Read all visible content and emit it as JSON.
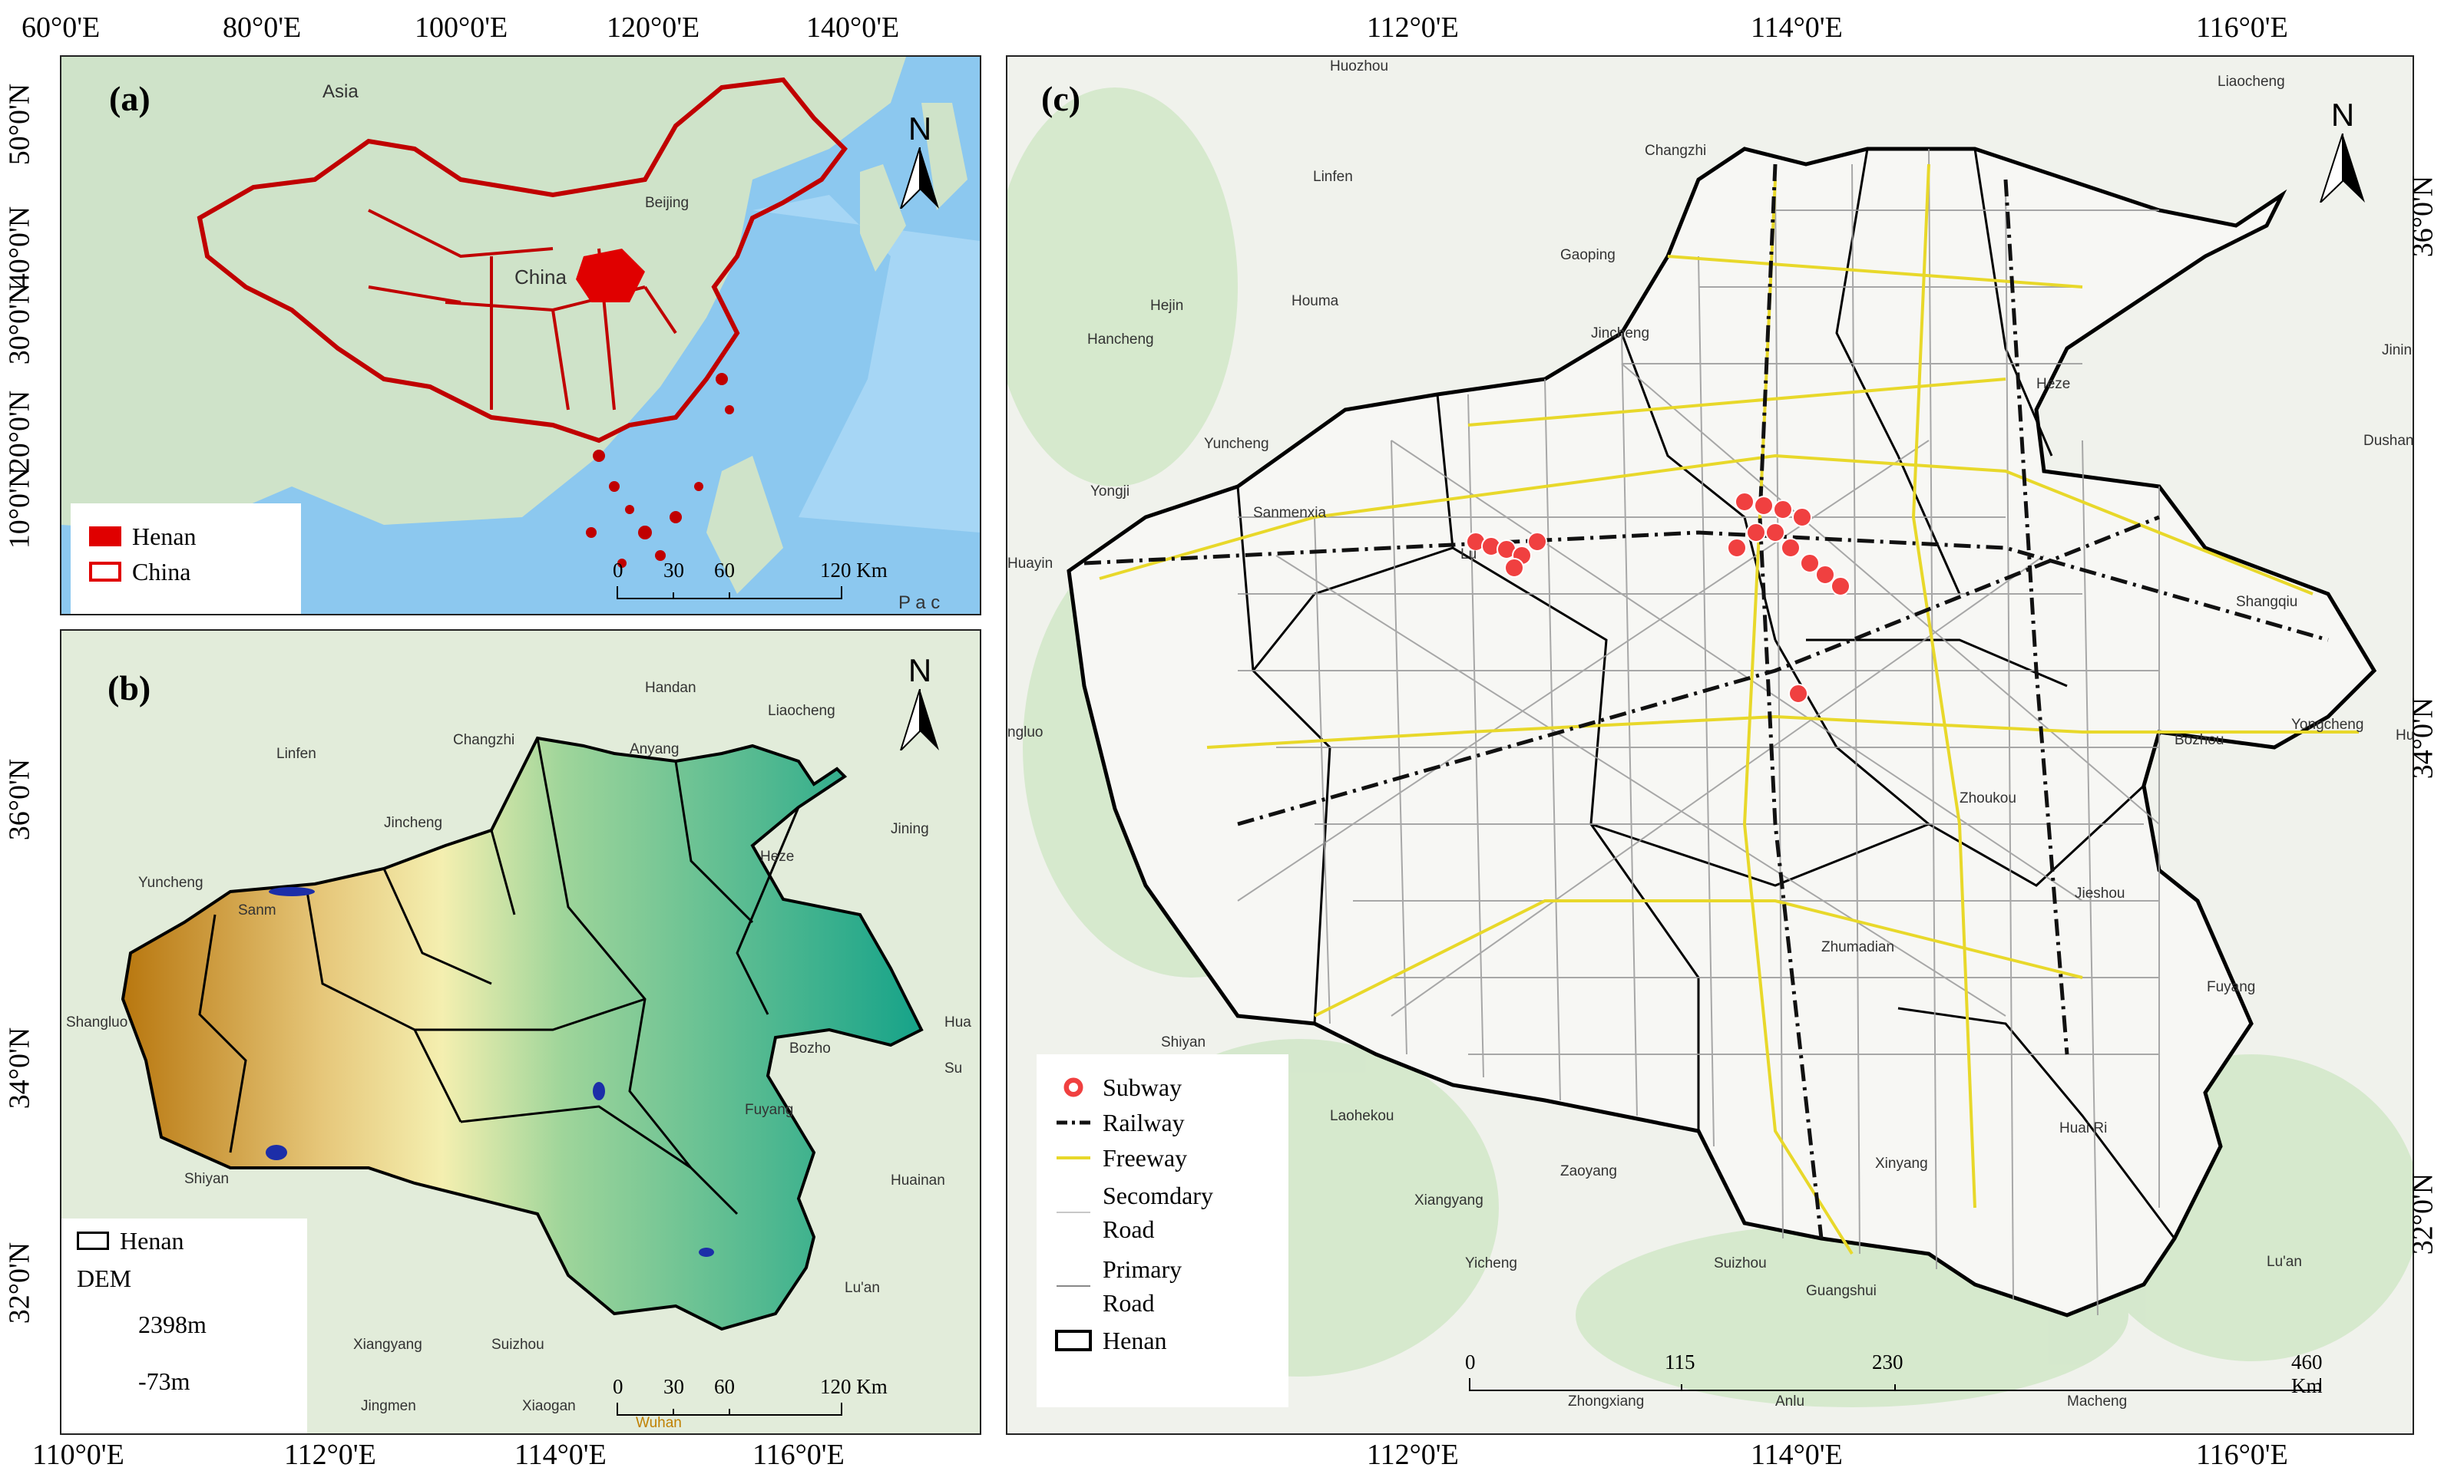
{
  "panel_a": {
    "label": "(a)",
    "top_ticks": [
      "60°0'E",
      "80°0'E",
      "100°0'E",
      "120°0'E",
      "140°0'E"
    ],
    "left_ticks": [
      "50°0'N",
      "40°0'N",
      "30°0'N",
      "20°0'N",
      "10°0'N"
    ],
    "places": [
      "Asia",
      "Beijing",
      "China",
      "P a c"
    ],
    "legend": [
      {
        "label": "Henan",
        "fill": "#e00000",
        "stroke": "#e00000"
      },
      {
        "label": "China",
        "fill": "#ffffff",
        "stroke": "#e00000"
      }
    ],
    "scale": [
      "0",
      "30",
      "60",
      "120 Km"
    ],
    "north": "N"
  },
  "panel_b": {
    "label": "(b)",
    "bottom_ticks": [
      "110°0'E",
      "112°0'E",
      "114°0'E",
      "116°0'E"
    ],
    "left_ticks": [
      "36°0'N",
      "34°0'N",
      "32°0'N"
    ],
    "places": [
      "Handan",
      "Liaocheng",
      "Changzhi",
      "Anyang",
      "Linfen",
      "Jincheng",
      "Heze",
      "Jining",
      "Yuncheng",
      "Sanm",
      "Shangluo",
      "Shiyan",
      "Bozho",
      "Fuyang",
      "Huainan",
      "Xiangyang",
      "Suizhou",
      "Jingmen",
      "Xiaogan",
      "Lu'an",
      "Wuhan",
      "Hua",
      "Su"
    ],
    "legend_henan": "Henan",
    "dem_title": "DEM",
    "dem_max": "2398m",
    "dem_min": "-73m",
    "scale": [
      "0",
      "30",
      "60",
      "120 Km"
    ],
    "north": "N"
  },
  "panel_c": {
    "label": "(c)",
    "top_ticks": [
      "112°0'E",
      "114°0'E",
      "116°0'E"
    ],
    "bottom_ticks": [
      "112°0'E",
      "114°0'E",
      "116°0'E"
    ],
    "right_ticks": [
      "36°0'N",
      "34°0'N",
      "32°0'N"
    ],
    "places": [
      "Huozhou",
      "Liaocheng",
      "Changzhi",
      "Linfen",
      "Gaoping",
      "Houma",
      "Hejin",
      "Hancheng",
      "Jincheng",
      "Heze",
      "Jining",
      "Yuncheng",
      "Yongji",
      "Sanmenxia",
      "Huayin",
      "Heze",
      "Dushan",
      "Shangqiu",
      "Zhoukou",
      "Bozhou",
      "Yongcheng",
      "Hua",
      "Jieshou",
      "Zhumadian",
      "Fuyang",
      "Shiyan",
      "Laohekou",
      "Xiangyang",
      "Zaoyang",
      "Suizhou",
      "Yicheng",
      "Guangshui",
      "Xinyang",
      "Huai Ri",
      "Lu'an",
      "ngluo",
      "Lu",
      "Zhongxiang",
      "Anlu",
      "Macheng"
    ],
    "legend": [
      {
        "label": "Subway",
        "kind": "subway"
      },
      {
        "label": "Railway",
        "kind": "railway"
      },
      {
        "label": "Freeway",
        "kind": "freeway"
      },
      {
        "label": "Secomdary\nRoad",
        "kind": "secondary"
      },
      {
        "label": "Primary\nRoad",
        "kind": "primary"
      },
      {
        "label": "Henan",
        "kind": "henan"
      }
    ],
    "scale": [
      "0",
      "115",
      "230",
      "460 Km"
    ],
    "north": "N"
  }
}
